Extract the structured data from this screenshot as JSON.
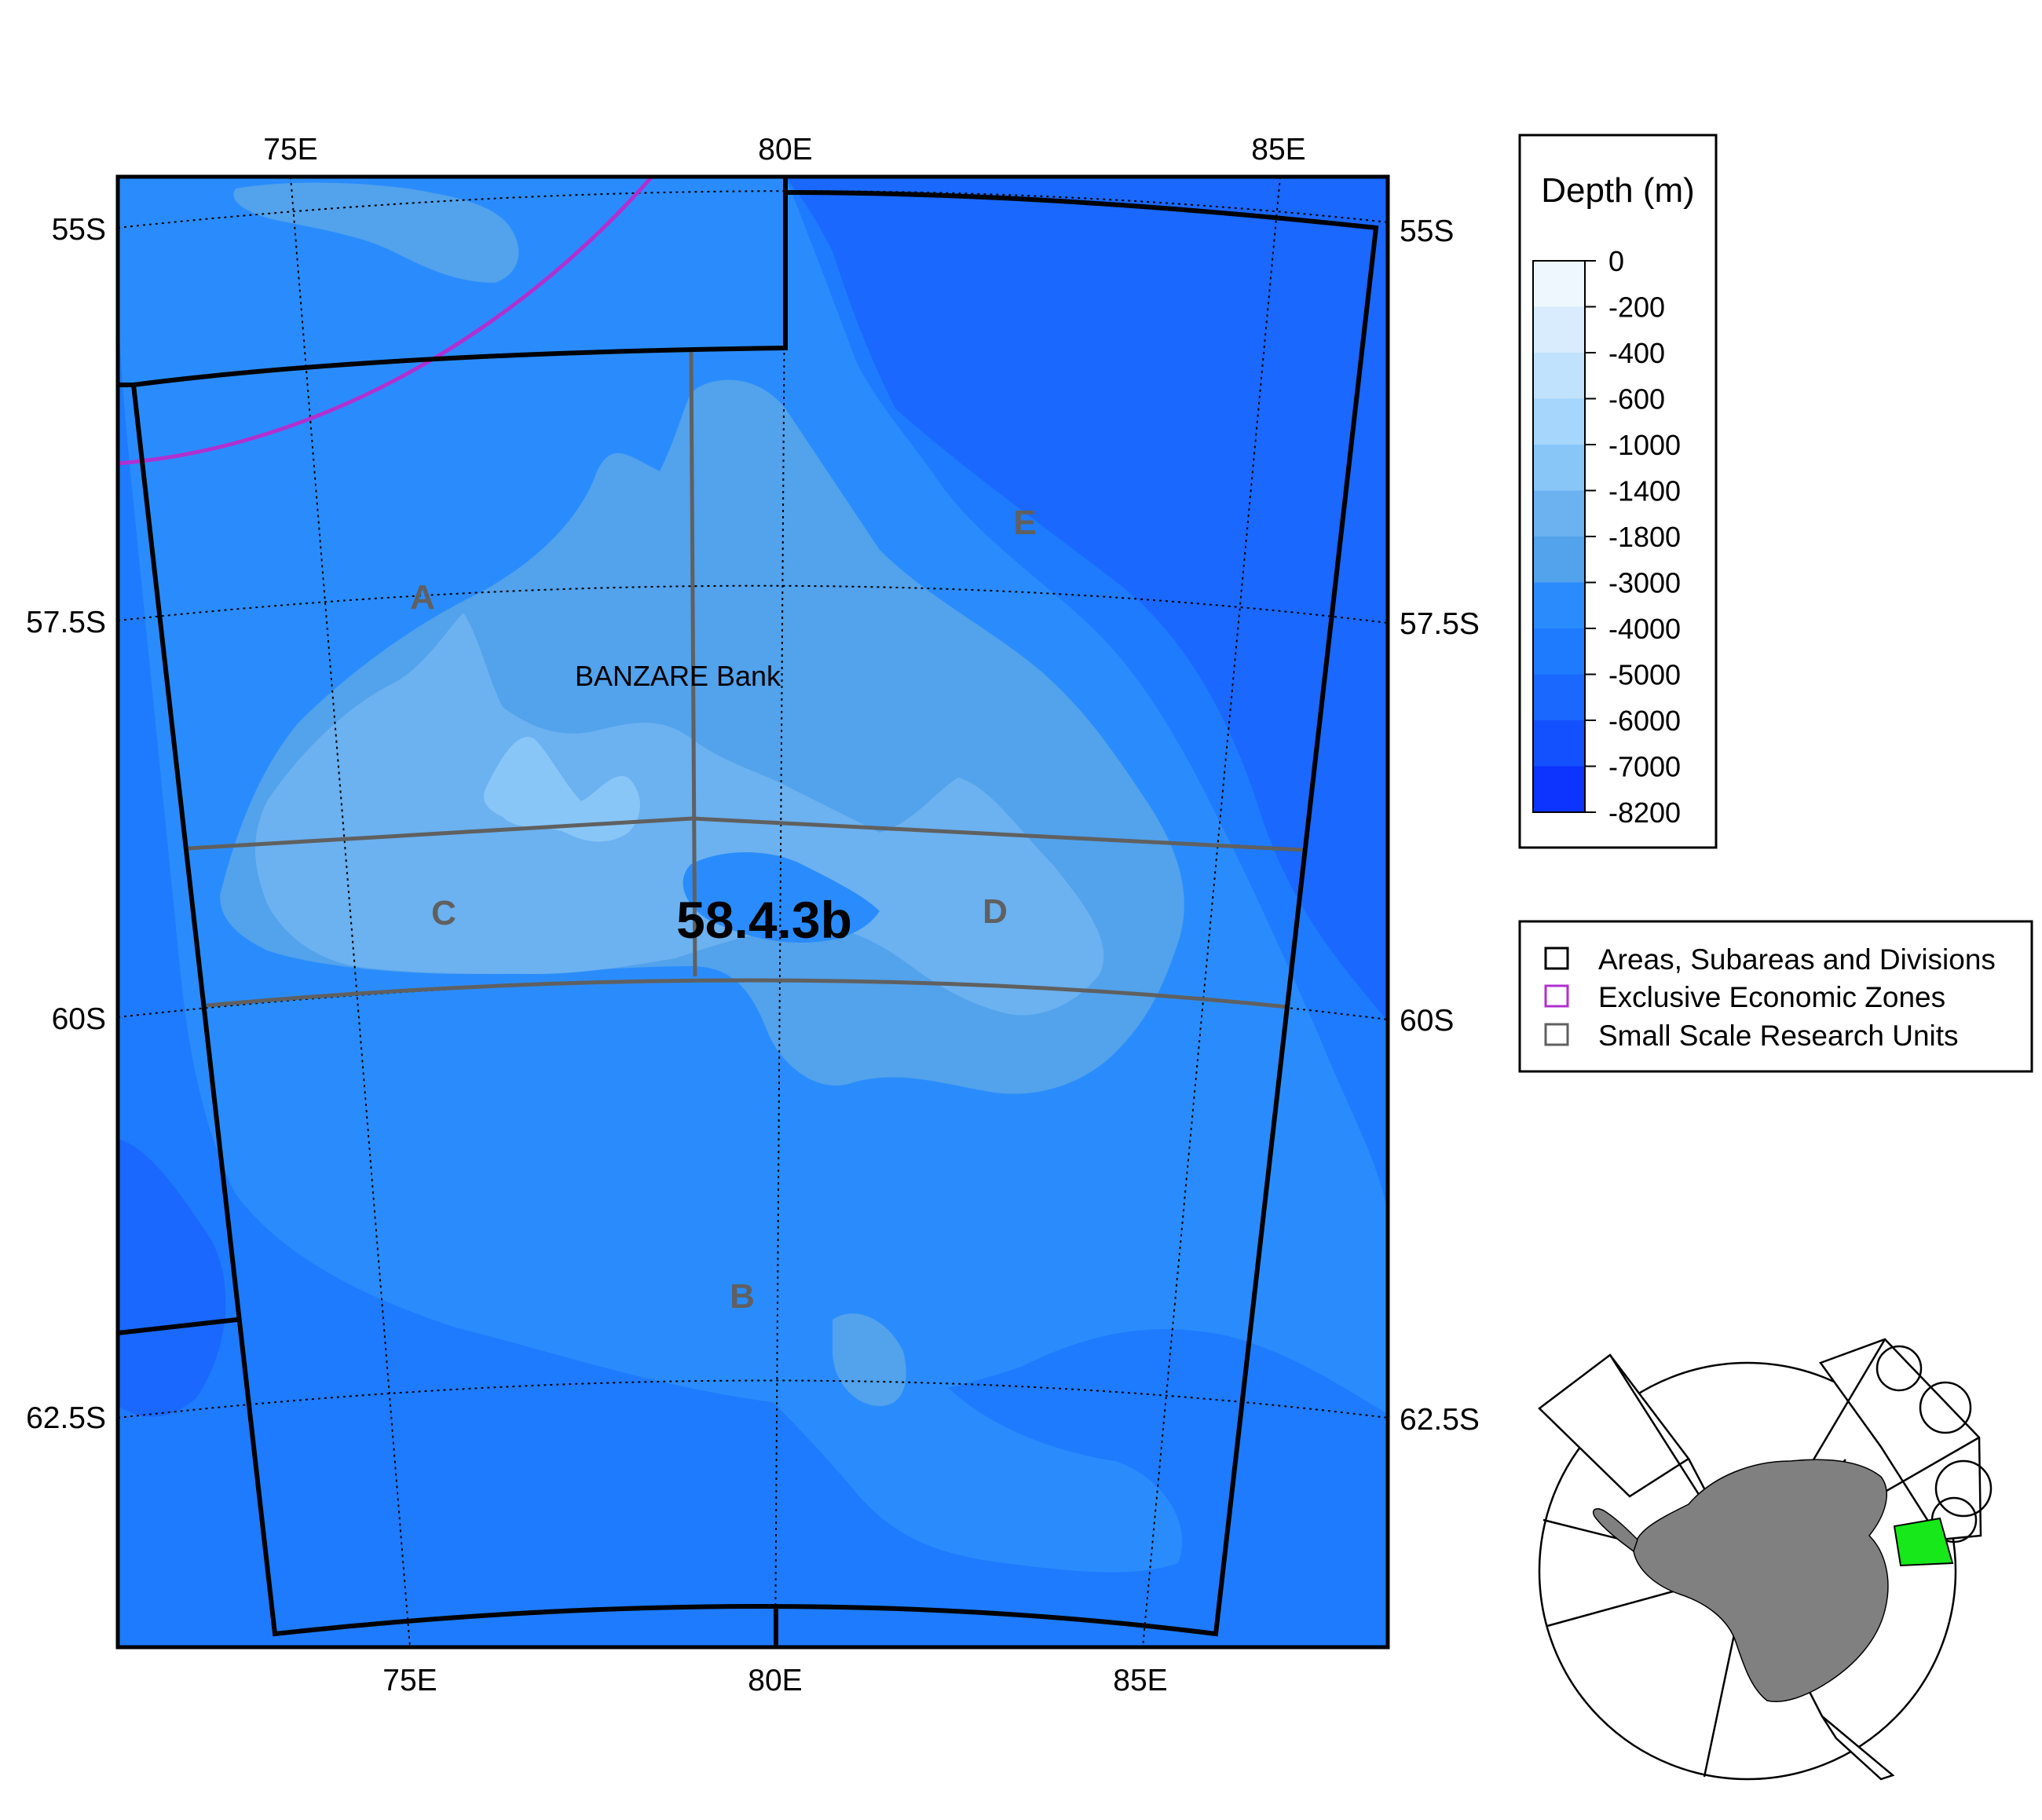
{
  "map": {
    "division_label": "58.4.3b",
    "feature_label": "BANZARE Bank",
    "ssru_labels": {
      "a": "A",
      "b": "B",
      "c": "C",
      "d": "D",
      "e": "E"
    },
    "top_longitudes": [
      "75E",
      "80E",
      "85E"
    ],
    "bottom_longitudes": [
      "75E",
      "80E",
      "85E"
    ],
    "left_latitudes": [
      "55S",
      "57.5S",
      "60S",
      "62.5S"
    ],
    "right_latitudes": [
      "55S",
      "57.5S",
      "60S",
      "62.5S"
    ]
  },
  "depth_legend": {
    "title": "Depth (m)",
    "levels": [
      "0",
      "-200",
      "-400",
      "-600",
      "-1000",
      "-1400",
      "-1800",
      "-3000",
      "-4000",
      "-5000",
      "-6000",
      "-7000",
      "-8200"
    ],
    "colors": [
      "#eef6fe",
      "#d8ecfd",
      "#c0e2fc",
      "#a6d6fb",
      "#88c6f8",
      "#6cb1f0",
      "#52a2ec",
      "#2a8cfc",
      "#1e7bfe",
      "#1a68fe",
      "#1451fe",
      "#0c34fe",
      "#0418f6"
    ]
  },
  "layer_legend": {
    "items": [
      {
        "label": "Areas, Subareas and Divisions",
        "color": "#000000"
      },
      {
        "label": "Exclusive Economic Zones",
        "color": "#b030d0"
      },
      {
        "label": "Small Scale Research Units",
        "color": "#606060"
      }
    ]
  },
  "colors": {
    "abyss": "#1e7bfe",
    "deep": "#2a8cfc",
    "slope": "#52a2ec",
    "bank": "#6cb1f0",
    "shallow": "#88c6f8",
    "eez": "#b030d0",
    "ssru": "#606060",
    "highlight": "#16e81a",
    "continent": "#808080"
  }
}
